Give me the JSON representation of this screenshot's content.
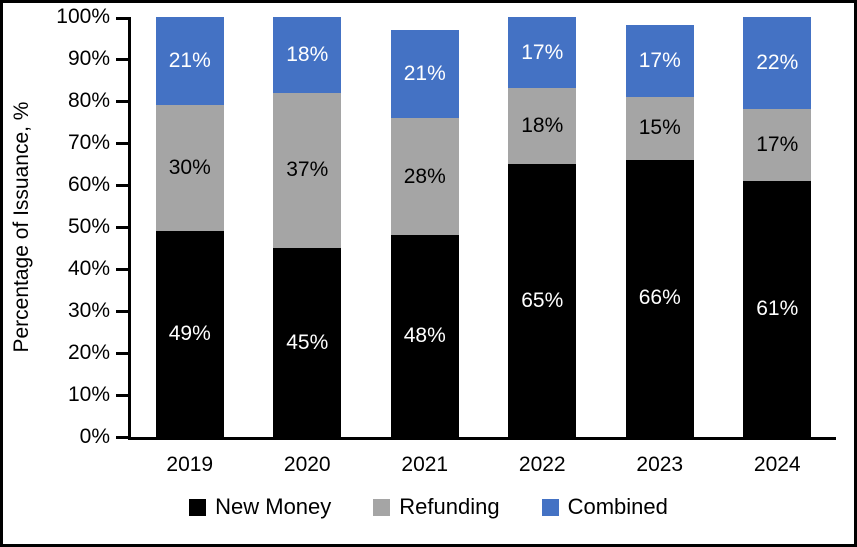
{
  "chart_data": {
    "type": "bar",
    "subtype": "stacked-percent",
    "title": "",
    "ylabel": "Percentage of Issuance, %",
    "xlabel": "",
    "categories": [
      "2019",
      "2020",
      "2021",
      "2022",
      "2023",
      "2024"
    ],
    "series": [
      {
        "name": "New Money",
        "color": "#000000",
        "label_color": "#FFFFFF",
        "values": [
          49,
          45,
          48,
          65,
          66,
          61
        ]
      },
      {
        "name": "Refunding",
        "color": "#A5A5A5",
        "label_color": "#000000",
        "values": [
          30,
          37,
          28,
          18,
          15,
          17
        ]
      },
      {
        "name": "Combined",
        "color": "#4472C4",
        "label_color": "#FFFFFF",
        "values": [
          21,
          18,
          21,
          17,
          17,
          22
        ]
      }
    ],
    "value_suffix": "%",
    "y_ticks": [
      {
        "label": "0%",
        "value": 0
      },
      {
        "label": "10%",
        "value": 10
      },
      {
        "label": "20%",
        "value": 20
      },
      {
        "label": "30%",
        "value": 30
      },
      {
        "label": "40%",
        "value": 40
      },
      {
        "label": "50%",
        "value": 50
      },
      {
        "label": "60%",
        "value": 60
      },
      {
        "label": "70%",
        "value": 70
      },
      {
        "label": "80%",
        "value": 80
      },
      {
        "label": "90%",
        "value": 90
      },
      {
        "label": "100%",
        "value": 100
      }
    ],
    "ylim": [
      0,
      100
    ],
    "grid": false,
    "legend_position": "bottom"
  }
}
